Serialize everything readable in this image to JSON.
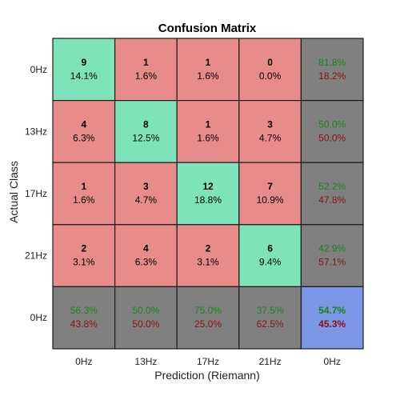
{
  "chart_data": {
    "type": "heatmap",
    "title": "Confusion Matrix",
    "xlabel": "Prediction (Riemann)",
    "ylabel": "Actual Class",
    "row_labels": [
      "0Hz",
      "13Hz",
      "17Hz",
      "21Hz",
      "0Hz"
    ],
    "col_labels": [
      "0Hz",
      "13Hz",
      "17Hz",
      "21Hz",
      "0Hz"
    ],
    "counts": [
      [
        9,
        1,
        1,
        0
      ],
      [
        4,
        8,
        1,
        3
      ],
      [
        1,
        3,
        12,
        7
      ],
      [
        2,
        4,
        2,
        6
      ]
    ],
    "percents": [
      [
        "14.1%",
        "1.6%",
        "1.6%",
        "0.0%"
      ],
      [
        "6.3%",
        "12.5%",
        "1.6%",
        "4.7%"
      ],
      [
        "1.6%",
        "4.7%",
        "18.8%",
        "10.9%"
      ],
      [
        "3.1%",
        "6.3%",
        "3.1%",
        "9.4%"
      ]
    ],
    "row_summary": [
      [
        "81.8%",
        "18.2%"
      ],
      [
        "50.0%",
        "50.0%"
      ],
      [
        "52.2%",
        "47.8%"
      ],
      [
        "42.9%",
        "57.1%"
      ]
    ],
    "col_summary": [
      [
        "56.3%",
        "43.8%"
      ],
      [
        "50.0%",
        "50.0%"
      ],
      [
        "75.0%",
        "25.0%"
      ],
      [
        "37.5%",
        "62.5%"
      ]
    ],
    "overall": [
      "54.7%",
      "45.3%"
    ],
    "colors": {
      "correct": "#7ee3b8",
      "incorrect": "#e88b8b",
      "summary": "#808080",
      "overall": "#7b97e6",
      "good_text": "#118a11",
      "bad_text": "#8a1212",
      "border": "#1a1a1a"
    }
  }
}
